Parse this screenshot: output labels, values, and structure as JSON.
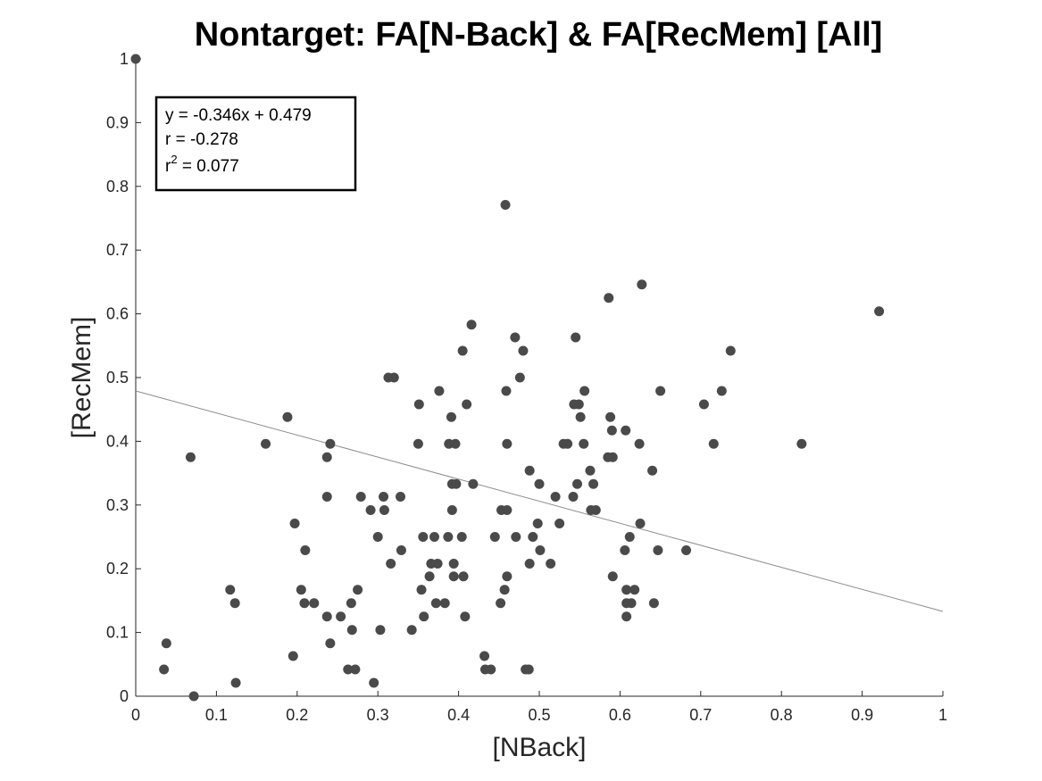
{
  "chart_data": {
    "type": "scatter",
    "title": "Nontarget: FA[N-Back] & FA[RecMem] [All]",
    "xlabel": "[NBack]",
    "ylabel": "[RecMem]",
    "xlim": [
      0,
      1
    ],
    "ylim": [
      0,
      1
    ],
    "xticks": [
      "0",
      "0.1",
      "0.2",
      "0.3",
      "0.4",
      "0.5",
      "0.6",
      "0.7",
      "0.8",
      "0.9",
      "1"
    ],
    "yticks": [
      "0",
      "0.1",
      "0.2",
      "0.3",
      "0.4",
      "0.5",
      "0.6",
      "0.7",
      "0.8",
      "0.9",
      "1"
    ],
    "grid": false,
    "fit_line": {
      "slope": -0.346,
      "intercept": 0.479,
      "color": "#8c8c8c"
    },
    "stats": {
      "equation": "y = -0.346x + 0.479",
      "r": "r = -0.278",
      "r2_base": "r",
      "r2_exp": "2",
      "r2_value": " = 0.077"
    },
    "marker_color": "#4a4a4a",
    "points": [
      [
        0.0,
        1.0
      ],
      [
        0.035,
        0.042
      ],
      [
        0.038,
        0.083
      ],
      [
        0.068,
        0.375
      ],
      [
        0.072,
        0.0
      ],
      [
        0.117,
        0.167
      ],
      [
        0.123,
        0.146
      ],
      [
        0.124,
        0.021
      ],
      [
        0.161,
        0.396
      ],
      [
        0.188,
        0.438
      ],
      [
        0.195,
        0.063
      ],
      [
        0.197,
        0.271
      ],
      [
        0.205,
        0.167
      ],
      [
        0.209,
        0.146
      ],
      [
        0.21,
        0.229
      ],
      [
        0.221,
        0.146
      ],
      [
        0.237,
        0.125
      ],
      [
        0.237,
        0.375
      ],
      [
        0.237,
        0.313
      ],
      [
        0.241,
        0.396
      ],
      [
        0.241,
        0.083
      ],
      [
        0.254,
        0.125
      ],
      [
        0.263,
        0.042
      ],
      [
        0.267,
        0.146
      ],
      [
        0.268,
        0.104
      ],
      [
        0.272,
        0.042
      ],
      [
        0.275,
        0.167
      ],
      [
        0.279,
        0.313
      ],
      [
        0.291,
        0.292
      ],
      [
        0.295,
        0.021
      ],
      [
        0.3,
        0.25
      ],
      [
        0.303,
        0.104
      ],
      [
        0.307,
        0.313
      ],
      [
        0.308,
        0.292
      ],
      [
        0.313,
        0.5
      ],
      [
        0.316,
        0.208
      ],
      [
        0.32,
        0.5
      ],
      [
        0.328,
        0.313
      ],
      [
        0.329,
        0.229
      ],
      [
        0.342,
        0.104
      ],
      [
        0.35,
        0.396
      ],
      [
        0.351,
        0.458
      ],
      [
        0.354,
        0.167
      ],
      [
        0.356,
        0.25
      ],
      [
        0.357,
        0.125
      ],
      [
        0.364,
        0.188
      ],
      [
        0.366,
        0.208
      ],
      [
        0.37,
        0.25
      ],
      [
        0.372,
        0.146
      ],
      [
        0.374,
        0.208
      ],
      [
        0.376,
        0.479
      ],
      [
        0.383,
        0.146
      ],
      [
        0.387,
        0.25
      ],
      [
        0.388,
        0.396
      ],
      [
        0.391,
        0.438
      ],
      [
        0.392,
        0.292
      ],
      [
        0.392,
        0.333
      ],
      [
        0.394,
        0.208
      ],
      [
        0.394,
        0.188
      ],
      [
        0.396,
        0.396
      ],
      [
        0.397,
        0.333
      ],
      [
        0.404,
        0.25
      ],
      [
        0.405,
        0.542
      ],
      [
        0.406,
        0.188
      ],
      [
        0.408,
        0.125
      ],
      [
        0.41,
        0.458
      ],
      [
        0.416,
        0.583
      ],
      [
        0.418,
        0.333
      ],
      [
        0.432,
        0.063
      ],
      [
        0.433,
        0.042
      ],
      [
        0.44,
        0.042
      ],
      [
        0.445,
        0.25
      ],
      [
        0.452,
        0.146
      ],
      [
        0.453,
        0.292
      ],
      [
        0.457,
        0.167
      ],
      [
        0.458,
        0.771
      ],
      [
        0.459,
        0.479
      ],
      [
        0.46,
        0.292
      ],
      [
        0.46,
        0.396
      ],
      [
        0.46,
        0.188
      ],
      [
        0.47,
        0.563
      ],
      [
        0.471,
        0.25
      ],
      [
        0.476,
        0.5
      ],
      [
        0.48,
        0.542
      ],
      [
        0.483,
        0.042
      ],
      [
        0.487,
        0.042
      ],
      [
        0.488,
        0.354
      ],
      [
        0.488,
        0.208
      ],
      [
        0.492,
        0.25
      ],
      [
        0.498,
        0.271
      ],
      [
        0.5,
        0.333
      ],
      [
        0.501,
        0.229
      ],
      [
        0.514,
        0.208
      ],
      [
        0.52,
        0.313
      ],
      [
        0.525,
        0.271
      ],
      [
        0.53,
        0.396
      ],
      [
        0.535,
        0.396
      ],
      [
        0.542,
        0.313
      ],
      [
        0.543,
        0.458
      ],
      [
        0.545,
        0.563
      ],
      [
        0.547,
        0.333
      ],
      [
        0.549,
        0.458
      ],
      [
        0.551,
        0.438
      ],
      [
        0.555,
        0.396
      ],
      [
        0.556,
        0.479
      ],
      [
        0.563,
        0.354
      ],
      [
        0.564,
        0.292
      ],
      [
        0.567,
        0.333
      ],
      [
        0.57,
        0.292
      ],
      [
        0.585,
        0.375
      ],
      [
        0.586,
        0.625
      ],
      [
        0.588,
        0.438
      ],
      [
        0.59,
        0.417
      ],
      [
        0.591,
        0.375
      ],
      [
        0.591,
        0.188
      ],
      [
        0.606,
        0.229
      ],
      [
        0.607,
        0.417
      ],
      [
        0.608,
        0.167
      ],
      [
        0.608,
        0.146
      ],
      [
        0.608,
        0.125
      ],
      [
        0.612,
        0.25
      ],
      [
        0.614,
        0.146
      ],
      [
        0.618,
        0.167
      ],
      [
        0.624,
        0.396
      ],
      [
        0.625,
        0.271
      ],
      [
        0.627,
        0.646
      ],
      [
        0.64,
        0.354
      ],
      [
        0.642,
        0.146
      ],
      [
        0.647,
        0.229
      ],
      [
        0.65,
        0.479
      ],
      [
        0.682,
        0.229
      ],
      [
        0.704,
        0.458
      ],
      [
        0.716,
        0.396
      ],
      [
        0.726,
        0.479
      ],
      [
        0.737,
        0.542
      ],
      [
        0.825,
        0.396
      ],
      [
        0.921,
        0.604
      ]
    ]
  }
}
